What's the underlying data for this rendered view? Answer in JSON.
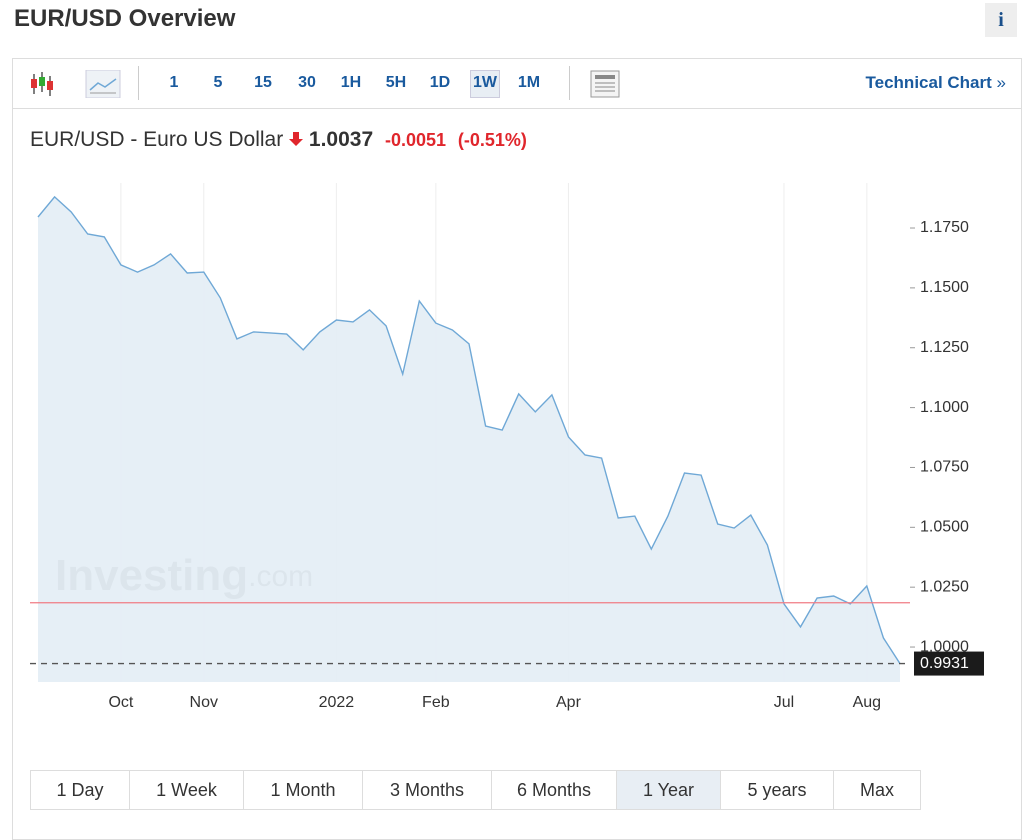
{
  "header": {
    "title": "EUR/USD Overview",
    "info": "i"
  },
  "toolbar": {
    "intervals": [
      "1",
      "5",
      "15",
      "30",
      "1H",
      "5H",
      "1D",
      "1W",
      "1M"
    ],
    "active": 7,
    "technical_chart": "Technical Chart",
    "chevron": "»"
  },
  "quote": {
    "name": "EUR/USD - Euro US Dollar",
    "price": "1.0037",
    "change": "-0.0051",
    "change_percent": "(-0.51%)"
  },
  "chart_data": {
    "type": "area",
    "color": "#6fa8d6",
    "fill": "#e3edf5",
    "watermark": [
      "Investing",
      ".com"
    ],
    "categories": [
      null,
      null,
      null,
      null,
      null,
      "Oct",
      null,
      null,
      null,
      null,
      "Nov",
      null,
      null,
      null,
      null,
      null,
      null,
      null,
      "2022",
      null,
      null,
      null,
      null,
      null,
      "Feb",
      null,
      null,
      null,
      null,
      null,
      null,
      null,
      "Apr",
      null,
      null,
      null,
      null,
      null,
      null,
      null,
      null,
      null,
      null,
      null,
      null,
      "Jul",
      null,
      null,
      null,
      null,
      "Aug",
      null,
      null
    ],
    "values": [
      1.1796,
      1.188,
      1.1817,
      1.1725,
      1.1713,
      1.1596,
      1.1566,
      1.1596,
      1.1642,
      1.1562,
      1.1566,
      1.1458,
      1.1287,
      1.1316,
      1.1312,
      1.1307,
      1.1241,
      1.1316,
      1.1366,
      1.1358,
      1.1408,
      1.1341,
      1.114,
      1.1445,
      1.1353,
      1.1324,
      1.1266,
      1.0923,
      1.0906,
      1.1057,
      1.0982,
      1.1053,
      1.0877,
      1.0802,
      1.0789,
      1.0539,
      1.0547,
      1.0409,
      1.0547,
      1.0727,
      1.0718,
      1.0514,
      1.0497,
      1.0551,
      1.0426,
      1.018,
      1.0084,
      1.0205,
      1.0213,
      1.018,
      1.0255,
      1.0038,
      0.9931
    ],
    "ylim": [
      0.9854,
      1.1938
    ],
    "yticks": [
      {
        "value": 1,
        "label": "1.0000"
      },
      {
        "value": 1.025,
        "label": "1.0250"
      },
      {
        "value": 1.05,
        "label": "1.0500"
      },
      {
        "value": 1.075,
        "label": "1.0750"
      },
      {
        "value": 1.1,
        "label": "1.1000"
      },
      {
        "value": 1.125,
        "label": "1.1250"
      },
      {
        "value": 1.15,
        "label": "1.1500"
      },
      {
        "value": 1.175,
        "label": "1.1750"
      }
    ],
    "reference_line": {
      "value": 1.0185,
      "color": "#f07c84"
    },
    "last_value": {
      "value": 0.9931,
      "label": "0.9931"
    }
  },
  "ranges": {
    "buttons": [
      "1 Day",
      "1 Week",
      "1 Month",
      "3 Months",
      "6 Months",
      "1 Year",
      "5 years",
      "Max"
    ],
    "active": 5
  }
}
